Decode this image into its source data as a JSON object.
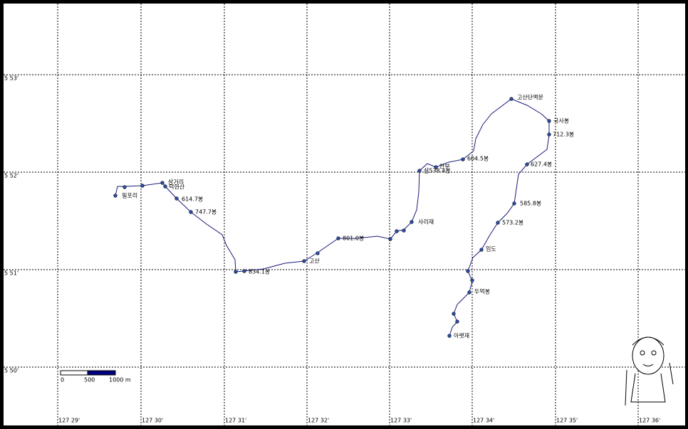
{
  "axes": {
    "longitude_labels": [
      "127 29'",
      "127 30'",
      "127 31'",
      "127 32'",
      "127 33'",
      "127 34'",
      "127 35'",
      "127 36'"
    ],
    "latitude_labels": [
      "5 53'",
      "5 52'",
      "5 51'",
      "5 50'"
    ]
  },
  "waypoints": [
    {
      "label": "필포리"
    },
    {
      "label": "삼거리"
    },
    {
      "label": "덕현산"
    },
    {
      "label": "614.7봉"
    },
    {
      "label": "747.7봉"
    },
    {
      "label": "834.1봉"
    },
    {
      "label": "고산"
    },
    {
      "label": "801.0봉"
    },
    {
      "label": "사리재"
    },
    {
      "label": "삼538.4봉"
    },
    {
      "label": "안부"
    },
    {
      "label": "604.5봉"
    },
    {
      "label": "고산단맥문"
    },
    {
      "label": "국사봉"
    },
    {
      "label": "712.3봉"
    },
    {
      "label": "627.4봉"
    },
    {
      "label": "585.8봉"
    },
    {
      "label": "573.2봉"
    },
    {
      "label": "임도"
    },
    {
      "label": "두억봉"
    },
    {
      "label": "아랫재"
    }
  ],
  "scale_bar": {
    "labels": [
      "0",
      "500",
      "1000 m"
    ]
  }
}
